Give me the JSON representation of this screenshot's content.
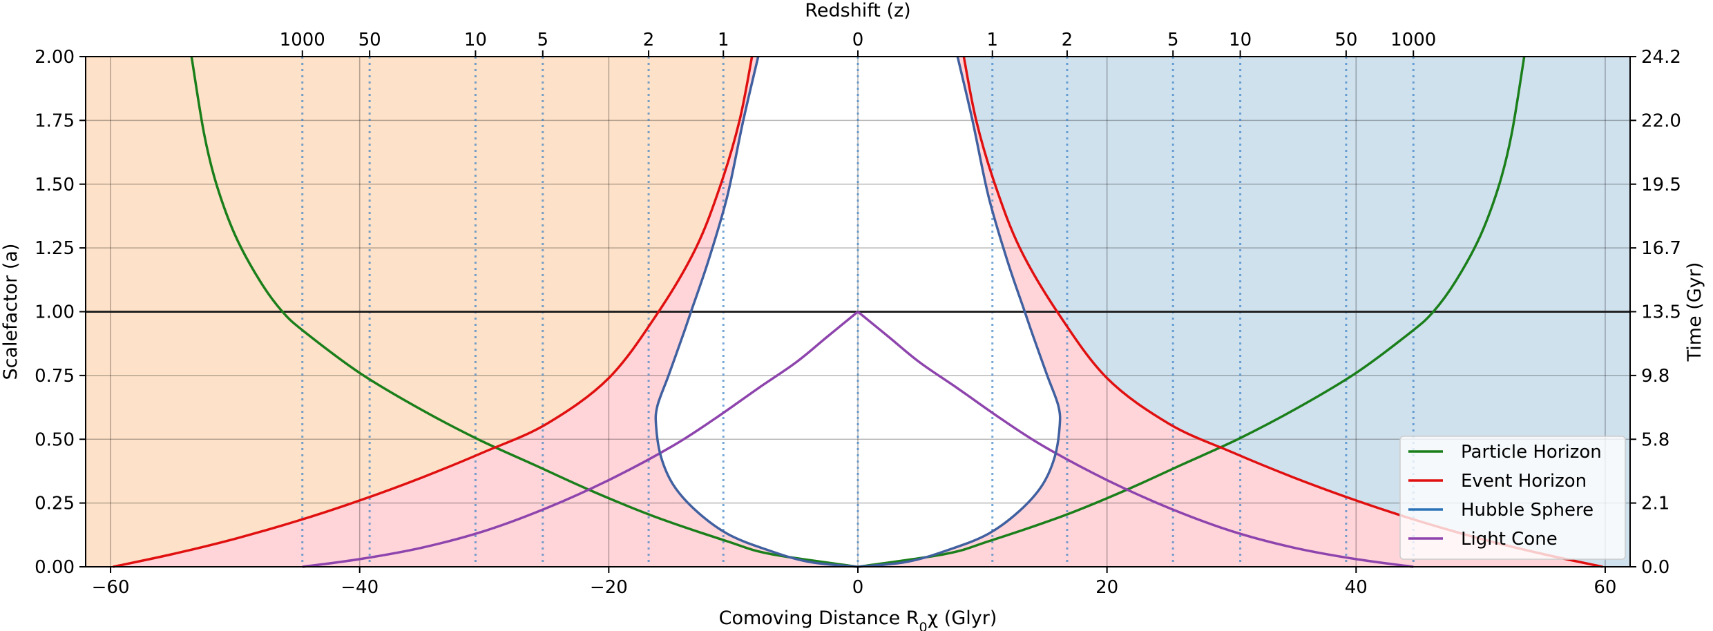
{
  "chart_data": {
    "type": "line",
    "xlabel": "Comoving Distance R",
    "xlabel_sub": "0",
    "xlabel_tail": "χ (Glyr)",
    "ylabel": "Scalefactor (a)",
    "top_label": "Redshift (z)",
    "right_label": "Time (Gyr)",
    "xlim": [
      -62,
      62
    ],
    "ylim": [
      0,
      2
    ],
    "x_ticks": [
      -60,
      -40,
      -20,
      0,
      20,
      40,
      60
    ],
    "x_tick_labels": [
      "−60",
      "−40",
      "−20",
      "0",
      "20",
      "40",
      "60"
    ],
    "y_ticks": [
      0,
      0.25,
      0.5,
      0.75,
      1.0,
      1.25,
      1.5,
      1.75,
      2.0
    ],
    "y_tick_labels": [
      "0.00",
      "0.25",
      "0.50",
      "0.75",
      "1.00",
      "1.25",
      "1.50",
      "1.75",
      "2.00"
    ],
    "right_ticks": [
      {
        "a": 0.0,
        "label": "0.0"
      },
      {
        "a": 0.25,
        "label": "2.1"
      },
      {
        "a": 0.5,
        "label": "5.8"
      },
      {
        "a": 0.75,
        "label": "9.8"
      },
      {
        "a": 1.0,
        "label": "13.5"
      },
      {
        "a": 1.25,
        "label": "16.7"
      },
      {
        "a": 1.5,
        "label": "19.5"
      },
      {
        "a": 1.75,
        "label": "22.0"
      },
      {
        "a": 2.0,
        "label": "24.2"
      }
    ],
    "redshift_ticks": [
      {
        "z": "1000",
        "x": -44.6
      },
      {
        "z": "50",
        "x": -39.2
      },
      {
        "z": "10",
        "x": -30.7
      },
      {
        "z": "5",
        "x": -25.3
      },
      {
        "z": "2",
        "x": -16.8
      },
      {
        "z": "1",
        "x": -10.8
      },
      {
        "z": "0",
        "x": 0
      },
      {
        "z": "1",
        "x": 10.8
      },
      {
        "z": "2",
        "x": 16.8
      },
      {
        "z": "5",
        "x": 25.3
      },
      {
        "z": "10",
        "x": 30.7
      },
      {
        "z": "50",
        "x": 39.2
      },
      {
        "z": "1000",
        "x": 44.6
      }
    ],
    "present_line_a": 1.0,
    "series": [
      {
        "name": "Particle Horizon",
        "color": "#1a7f1a",
        "points": [
          [
            0.0,
            0
          ],
          [
            7.0,
            0.05
          ],
          [
            10.5,
            0.1
          ],
          [
            16.5,
            0.2
          ],
          [
            21.5,
            0.3
          ],
          [
            26.0,
            0.4
          ],
          [
            30.5,
            0.5
          ],
          [
            35.2,
            0.62
          ],
          [
            40.0,
            0.76
          ],
          [
            44.4,
            0.92
          ],
          [
            46.2,
            1.0
          ],
          [
            48.0,
            1.12
          ],
          [
            50.0,
            1.3
          ],
          [
            51.5,
            1.5
          ],
          [
            52.5,
            1.7
          ],
          [
            53.5,
            2.0
          ]
        ]
      },
      {
        "name": "Event Horizon",
        "color": "#e01010",
        "points": [
          [
            59.8,
            0
          ],
          [
            55.0,
            0.05
          ],
          [
            50.0,
            0.11
          ],
          [
            45.0,
            0.18
          ],
          [
            40.0,
            0.26
          ],
          [
            35.0,
            0.35
          ],
          [
            30.0,
            0.45
          ],
          [
            25.0,
            0.56
          ],
          [
            20.0,
            0.74
          ],
          [
            16.0,
            1.0
          ],
          [
            13.0,
            1.25
          ],
          [
            11.0,
            1.5
          ],
          [
            9.5,
            1.75
          ],
          [
            8.5,
            2.0
          ]
        ]
      },
      {
        "name": "Hubble Sphere",
        "color": "#4060a0",
        "points": [
          [
            0,
            0
          ],
          [
            4.0,
            0.02
          ],
          [
            7.5,
            0.07
          ],
          [
            10.5,
            0.13
          ],
          [
            13.0,
            0.22
          ],
          [
            14.8,
            0.32
          ],
          [
            15.8,
            0.43
          ],
          [
            16.2,
            0.55
          ],
          [
            16.1,
            0.63
          ],
          [
            15.2,
            0.75
          ],
          [
            14.1,
            0.9
          ],
          [
            13.4,
            1.0
          ],
          [
            12.0,
            1.2
          ],
          [
            10.5,
            1.45
          ],
          [
            9.2,
            1.75
          ],
          [
            8.0,
            2.0
          ]
        ]
      },
      {
        "name": "Light Cone",
        "color": "#8e44ad",
        "points": [
          [
            0,
            1.0
          ],
          [
            2.5,
            0.9
          ],
          [
            5.0,
            0.8
          ],
          [
            8.0,
            0.7
          ],
          [
            11.5,
            0.58
          ],
          [
            15.0,
            0.47
          ],
          [
            20.0,
            0.34
          ],
          [
            25.0,
            0.23
          ],
          [
            30.0,
            0.14
          ],
          [
            35.0,
            0.075
          ],
          [
            40.0,
            0.03
          ],
          [
            44.6,
            0.0
          ]
        ]
      }
    ],
    "regions": [
      {
        "name": "left",
        "color": "#fde1c8"
      },
      {
        "name": "right",
        "color": "#d0e1ee"
      },
      {
        "name": "between",
        "color": "#ffd5da"
      }
    ],
    "legend": {
      "placement": "lower-right",
      "entries": [
        {
          "label": "Particle Horizon",
          "color": "#1a7f1a"
        },
        {
          "label": "Event Horizon",
          "color": "#e01010"
        },
        {
          "label": "Hubble Sphere",
          "color": "#2c72b8"
        },
        {
          "label": "Light Cone",
          "color": "#8e44ad"
        }
      ]
    }
  }
}
